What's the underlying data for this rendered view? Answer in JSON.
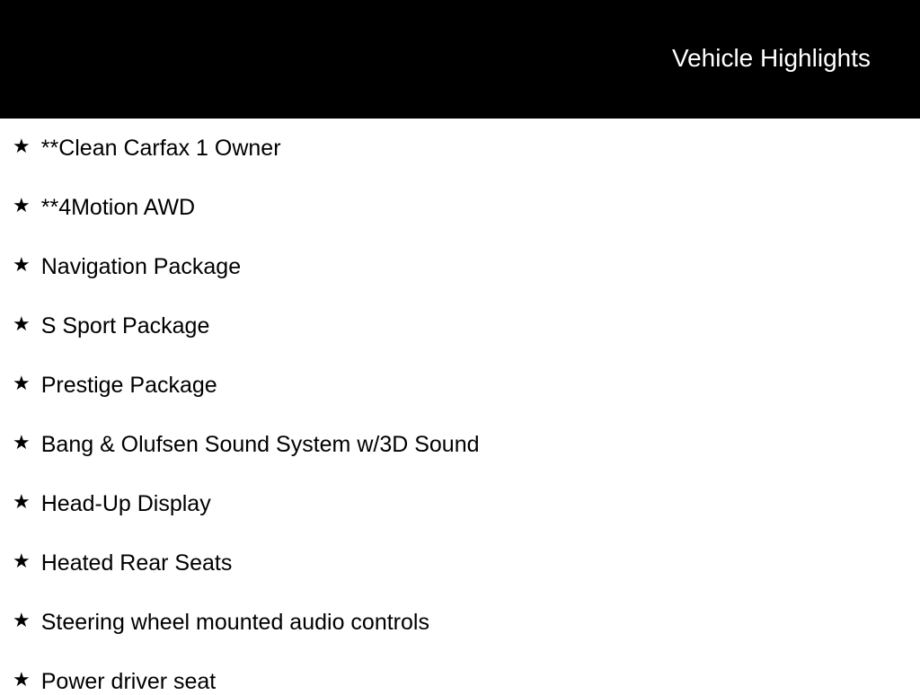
{
  "header": {
    "title": "Vehicle Highlights",
    "background_color": "#000000",
    "text_color": "#ffffff",
    "title_fontsize": 28
  },
  "body": {
    "background_color": "#ffffff",
    "text_color": "#000000",
    "item_fontsize": 25,
    "icon_glyph": "★"
  },
  "highlights": [
    "**Clean Carfax 1 Owner",
    "**4Motion AWD",
    "Navigation Package",
    "S Sport Package",
    "Prestige Package",
    "Bang & Olufsen Sound System w/3D Sound",
    "Head-Up Display",
    "Heated Rear Seats",
    "Steering wheel mounted audio controls",
    "Power driver seat"
  ]
}
